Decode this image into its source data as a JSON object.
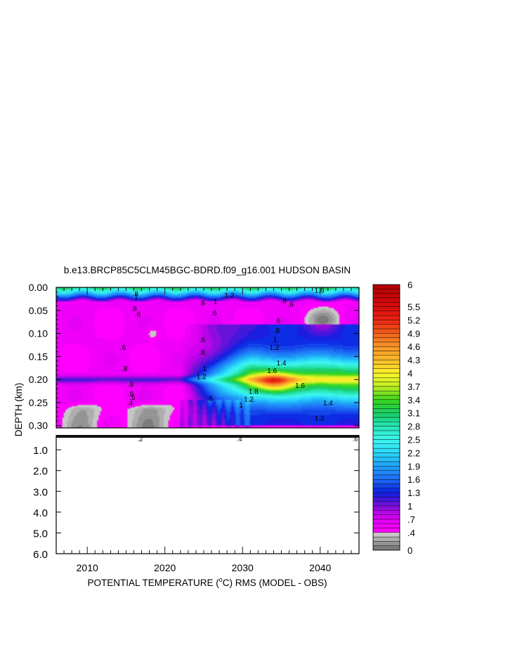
{
  "chart_data": {
    "type": "heatmap",
    "title": "b.e13.BRCP85C5CLM45BGC-BDRD.f09_g16.001 HUDSON BASIN",
    "xlabel": "POTENTIAL TEMPERATURE (°C) RMS (MODEL - OBS)",
    "xlabel_parts": {
      "before": "POTENTIAL TEMPERATURE (",
      "sup": "o",
      "after": "C) RMS (MODEL - OBS)"
    },
    "ylabel": "DEPTH (km)",
    "xlim": [
      2006,
      2045
    ],
    "x_ticks": [
      "2010",
      "2020",
      "2030",
      "2040"
    ],
    "x_tick_values": [
      2010,
      2020,
      2030,
      2040
    ],
    "upper_panel": {
      "ylim": [
        0.0,
        0.305
      ],
      "y_ticks": [
        "0.00",
        "0.05",
        "0.10",
        "0.15",
        "0.20",
        "0.25",
        "0.30"
      ],
      "y_tick_values": [
        0.0,
        0.05,
        0.1,
        0.15,
        0.2,
        0.25,
        0.3
      ]
    },
    "lower_panel": {
      "ylim": [
        0.32,
        6.0
      ],
      "y_ticks": [
        "1.0",
        "2.0",
        "3.0",
        "4.0",
        "5.0",
        "6.0"
      ],
      "y_tick_values": [
        1.0,
        2.0,
        3.0,
        4.0,
        5.0,
        6.0
      ]
    },
    "contour_labels": [
      {
        "text": ".8",
        "x": 2016.2,
        "y": 0.013
      },
      {
        "text": "1",
        "x": 2016.3,
        "y": 0.02
      },
      {
        "text": ".6",
        "x": 2024.8,
        "y": 0.033
      },
      {
        "text": "1.2",
        "x": 2028.3,
        "y": 0.016
      },
      {
        "text": "1",
        "x": 2026.5,
        "y": 0.03
      },
      {
        "text": "1.6",
        "x": 2039.9,
        "y": 0.005
      },
      {
        "text": ".8",
        "x": 2035.3,
        "y": 0.028
      },
      {
        "text": ".6",
        "x": 2036.2,
        "y": 0.036
      },
      {
        "text": ".8",
        "x": 2016.0,
        "y": 0.045
      },
      {
        "text": ".6",
        "x": 2016.5,
        "y": 0.057
      },
      {
        "text": ".6",
        "x": 2026.3,
        "y": 0.055
      },
      {
        "text": ".6",
        "x": 2034.5,
        "y": 0.072
      },
      {
        "text": ".8",
        "x": 2034.4,
        "y": 0.093
      },
      {
        "text": "1",
        "x": 2034.2,
        "y": 0.112
      },
      {
        "text": "1.2",
        "x": 2034.1,
        "y": 0.13
      },
      {
        "text": ".6",
        "x": 2014.6,
        "y": 0.13
      },
      {
        "text": ".6",
        "x": 2024.8,
        "y": 0.113
      },
      {
        "text": ".8",
        "x": 2024.8,
        "y": 0.14
      },
      {
        "text": "1.4",
        "x": 2035.0,
        "y": 0.163
      },
      {
        "text": "1.6",
        "x": 2033.8,
        "y": 0.18
      },
      {
        "text": ".8",
        "x": 2014.8,
        "y": 0.175
      },
      {
        "text": "1",
        "x": 2025.1,
        "y": 0.175
      },
      {
        "text": "1.2",
        "x": 2024.7,
        "y": 0.193
      },
      {
        "text": "1.6",
        "x": 2037.4,
        "y": 0.212
      },
      {
        "text": "1.8",
        "x": 2031.4,
        "y": 0.225
      },
      {
        "text": ".8",
        "x": 2015.6,
        "y": 0.21
      },
      {
        "text": ".6",
        "x": 2015.6,
        "y": 0.23
      },
      {
        "text": ".5",
        "x": 2015.8,
        "y": 0.238
      },
      {
        "text": ".4",
        "x": 2015.5,
        "y": 0.25
      },
      {
        "text": ".6",
        "x": 2025.8,
        "y": 0.24
      },
      {
        "text": "1.2",
        "x": 2030.8,
        "y": 0.242
      },
      {
        "text": "1",
        "x": 2029.8,
        "y": 0.255
      },
      {
        "text": "1.4",
        "x": 2041.0,
        "y": 0.25
      },
      {
        "text": "1.2",
        "x": 2039.9,
        "y": 0.283
      }
    ],
    "below_axis_labels": [
      {
        "text": ".2",
        "x": 2016.8
      },
      {
        "text": ".4",
        "x": 2029.6
      },
      {
        "text": ".6",
        "x": 2044.5
      }
    ],
    "colorbar": {
      "labels": [
        "6",
        "5.5",
        "5.2",
        "4.9",
        "4.6",
        "4.3",
        "4",
        "3.7",
        "3.4",
        "3.1",
        "2.8",
        "2.5",
        "2.2",
        "1.9",
        "1.6",
        "1.3",
        "1",
        ".7",
        ".4",
        "0"
      ],
      "label_values": [
        6,
        5.5,
        5.2,
        4.9,
        4.6,
        4.3,
        4,
        3.7,
        3.4,
        3.1,
        2.8,
        2.5,
        2.2,
        1.9,
        1.6,
        1.3,
        1,
        0.7,
        0.4,
        0
      ],
      "levels": [
        0,
        0.1,
        0.2,
        0.3,
        0.4,
        0.5,
        0.6,
        0.7,
        0.8,
        0.9,
        1.0,
        1.1,
        1.2,
        1.3,
        1.4,
        1.5,
        1.6,
        1.7,
        1.8,
        1.9,
        2.0,
        2.1,
        2.2,
        2.3,
        2.4,
        2.5,
        2.6,
        2.7,
        2.8,
        2.9,
        3.0,
        3.1,
        3.2,
        3.3,
        3.4,
        3.5,
        3.6,
        3.7,
        3.8,
        3.9,
        4.0,
        4.1,
        4.2,
        4.3,
        4.4,
        4.5,
        4.6,
        4.7,
        4.8,
        4.9,
        5.0,
        5.1,
        5.2,
        5.3,
        5.4,
        5.5,
        5.6,
        5.7,
        5.8,
        5.9,
        6.0
      ],
      "stops": [
        {
          "v": 0.0,
          "c": "#6e6e6e"
        },
        {
          "v": 0.4,
          "c": "#d2d2d2"
        },
        {
          "v": 0.45,
          "c": "#ff00ff"
        },
        {
          "v": 0.8,
          "c": "#cc00ee"
        },
        {
          "v": 1.0,
          "c": "#7a10d8"
        },
        {
          "v": 1.3,
          "c": "#0a1fe0"
        },
        {
          "v": 1.6,
          "c": "#1e6cf5"
        },
        {
          "v": 1.9,
          "c": "#1fa2f8"
        },
        {
          "v": 2.2,
          "c": "#2ad8f8"
        },
        {
          "v": 2.5,
          "c": "#3ef7f0"
        },
        {
          "v": 2.8,
          "c": "#27e6b5"
        },
        {
          "v": 3.1,
          "c": "#18cc64"
        },
        {
          "v": 3.4,
          "c": "#3ad61c"
        },
        {
          "v": 3.7,
          "c": "#c2ef24"
        },
        {
          "v": 4.0,
          "c": "#fbf42a"
        },
        {
          "v": 4.3,
          "c": "#fbb92a"
        },
        {
          "v": 4.6,
          "c": "#f7962a"
        },
        {
          "v": 4.9,
          "c": "#f2601c"
        },
        {
          "v": 5.2,
          "c": "#ec2414"
        },
        {
          "v": 5.5,
          "c": "#d80c0c"
        },
        {
          "v": 6.0,
          "c": "#b00000"
        }
      ]
    }
  }
}
